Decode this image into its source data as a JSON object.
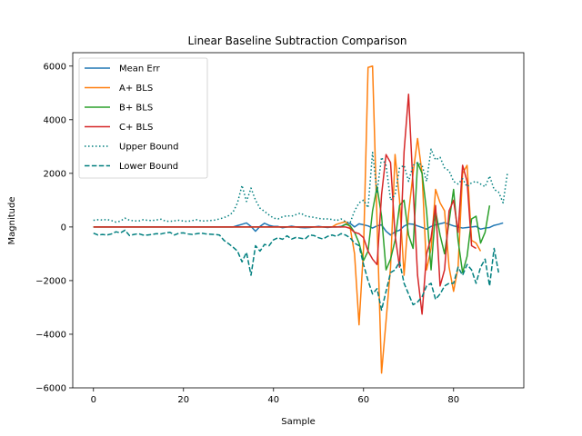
{
  "chart_data": {
    "type": "line",
    "title": "Linear Baseline Subtraction Comparison",
    "xlabel": "Sample",
    "ylabel": "Magnitude",
    "xlim": [
      -4.6,
      95.6
    ],
    "ylim": [
      -6000,
      6500
    ],
    "xticks": [
      0,
      20,
      40,
      60,
      80
    ],
    "yticks": [
      -6000,
      -4000,
      -2000,
      0,
      2000,
      4000,
      6000
    ],
    "grid": false,
    "legend_position": "top-left",
    "series": [
      {
        "name": "Mean Err",
        "color": "#1f77b4",
        "dash": "solid",
        "values": [
          0,
          0,
          0,
          0,
          0,
          0,
          0,
          0,
          0,
          0,
          0,
          0,
          0,
          0,
          0,
          0,
          0,
          0,
          0,
          0,
          0,
          0,
          0,
          0,
          0,
          0,
          0,
          0,
          0,
          0,
          0,
          0,
          50,
          100,
          150,
          20,
          -160,
          20,
          140,
          60,
          20,
          20,
          -30,
          0,
          30,
          0,
          -20,
          -30,
          -20,
          0,
          20,
          0,
          -20,
          0,
          0,
          20,
          100,
          140,
          0,
          120,
          80,
          40,
          -40,
          40,
          80,
          -160,
          -300,
          -180,
          -120,
          30,
          120,
          100,
          40,
          -20,
          -80,
          20,
          80,
          120,
          160,
          100,
          40,
          0,
          -40,
          -20,
          0,
          20,
          -80,
          -40,
          -20,
          60,
          100,
          150
        ]
      },
      {
        "name": "A+ BLS",
        "color": "#ff7f0e",
        "dash": "solid",
        "values": [
          0,
          0,
          0,
          0,
          0,
          0,
          0,
          0,
          0,
          0,
          0,
          0,
          0,
          0,
          0,
          0,
          0,
          0,
          0,
          0,
          0,
          0,
          0,
          0,
          0,
          0,
          0,
          0,
          0,
          0,
          0,
          0,
          0,
          0,
          0,
          0,
          0,
          0,
          0,
          0,
          0,
          0,
          0,
          0,
          0,
          0,
          0,
          0,
          0,
          0,
          0,
          0,
          0,
          0,
          100,
          150,
          200,
          0,
          -1000,
          -3650,
          -800,
          5950,
          6000,
          200,
          -5450,
          -3500,
          -1500,
          2700,
          1000,
          -1800,
          500,
          2000,
          3300,
          2000,
          -1600,
          -800,
          1400,
          900,
          600,
          -1500,
          -2400,
          -1500,
          2000,
          2300,
          -500,
          -600,
          -900
        ]
      },
      {
        "name": "B+ BLS",
        "color": "#2ca02c",
        "dash": "solid",
        "values": [
          0,
          0,
          0,
          0,
          0,
          0,
          0,
          0,
          0,
          0,
          0,
          0,
          0,
          0,
          0,
          0,
          0,
          0,
          0,
          0,
          0,
          0,
          0,
          0,
          0,
          0,
          0,
          0,
          0,
          0,
          0,
          0,
          0,
          0,
          0,
          0,
          0,
          0,
          0,
          0,
          0,
          0,
          0,
          0,
          0,
          0,
          0,
          0,
          0,
          0,
          0,
          0,
          0,
          0,
          0,
          0,
          100,
          50,
          -200,
          -600,
          -1250,
          -900,
          600,
          1500,
          400,
          -1600,
          -1200,
          -500,
          800,
          1000,
          -300,
          -800,
          2400,
          2000,
          600,
          -1600,
          600,
          -300,
          -1000,
          200,
          1400,
          -500,
          -1700,
          -1100,
          300,
          400,
          -600,
          -200,
          800
        ]
      },
      {
        "name": "C+ BLS",
        "color": "#d62728",
        "dash": "solid",
        "values": [
          0,
          0,
          0,
          0,
          0,
          0,
          0,
          0,
          0,
          0,
          0,
          0,
          0,
          0,
          0,
          0,
          0,
          0,
          0,
          0,
          0,
          0,
          0,
          0,
          0,
          0,
          0,
          0,
          0,
          0,
          0,
          0,
          0,
          0,
          0,
          0,
          0,
          0,
          0,
          0,
          0,
          0,
          0,
          0,
          0,
          0,
          0,
          0,
          0,
          0,
          0,
          0,
          0,
          0,
          0,
          0,
          0,
          -50,
          -200,
          -250,
          -400,
          -900,
          -1200,
          -1400,
          1200,
          2700,
          2400,
          -300,
          -1500,
          2800,
          4950,
          1500,
          -1800,
          -3250,
          -1000,
          -400,
          800,
          -2200,
          -1600,
          600,
          1000,
          -200,
          2300,
          1700,
          -700,
          -800
        ]
      },
      {
        "name": "Upper Bound",
        "color": "#007f7f",
        "dash": "dotted",
        "values": [
          250,
          270,
          260,
          280,
          240,
          180,
          220,
          330,
          250,
          230,
          220,
          270,
          250,
          240,
          260,
          290,
          220,
          210,
          230,
          250,
          220,
          210,
          240,
          270,
          220,
          230,
          240,
          260,
          300,
          350,
          420,
          550,
          900,
          1550,
          950,
          1450,
          1000,
          700,
          580,
          450,
          330,
          300,
          380,
          420,
          400,
          460,
          520,
          420,
          380,
          360,
          320,
          300,
          300,
          280,
          240,
          300,
          200,
          150,
          600,
          900,
          1000,
          720,
          2780,
          1300,
          2600,
          2300,
          1000,
          1200,
          2200,
          2300,
          1700,
          2300,
          2400,
          2300,
          1700,
          2900,
          2500,
          2600,
          2200,
          2100,
          1700,
          1600,
          1800,
          1500,
          1650,
          1700,
          1600,
          1500,
          1900,
          1400,
          1300,
          900,
          2050
        ]
      },
      {
        "name": "Lower Bound",
        "color": "#007f7f",
        "dash": "dashed",
        "values": [
          -230,
          -300,
          -280,
          -300,
          -260,
          -180,
          -220,
          -120,
          -320,
          -280,
          -250,
          -300,
          -300,
          -280,
          -250,
          -260,
          -220,
          -200,
          -300,
          -230,
          -220,
          -260,
          -280,
          -250,
          -230,
          -260,
          -270,
          -280,
          -300,
          -500,
          -620,
          -750,
          -900,
          -1300,
          -950,
          -1800,
          -700,
          -900,
          -650,
          -700,
          -480,
          -400,
          -460,
          -330,
          -450,
          -390,
          -420,
          -450,
          -300,
          -320,
          -400,
          -450,
          -350,
          -300,
          -350,
          -250,
          -300,
          -400,
          -600,
          -700,
          -1400,
          -2000,
          -2500,
          -2300,
          -3100,
          -2400,
          -1700,
          -1600,
          -1300,
          -2100,
          -2500,
          -2900,
          -2800,
          -2600,
          -2200,
          -2100,
          -2700,
          -2500,
          -2200,
          -2100,
          -2100,
          -1500,
          -1800,
          -1400,
          -1600,
          -2100,
          -1500,
          -1200,
          -2200,
          -800,
          -1700
        ]
      }
    ]
  }
}
